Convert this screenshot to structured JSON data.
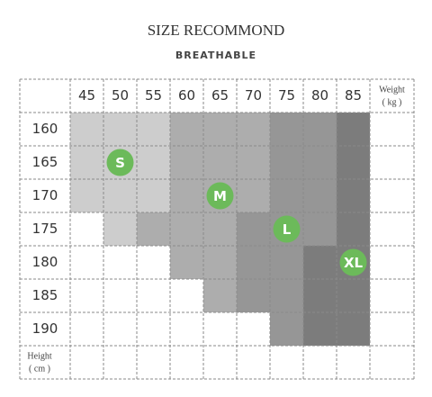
{
  "header": {
    "title": "SIZE RECOMMOND",
    "subtitle": "BREATHABLE"
  },
  "table": {
    "weight_label": [
      "Weight",
      "( kg )"
    ],
    "height_label": [
      "Height",
      "( cm )"
    ],
    "columns": [
      45,
      50,
      55,
      60,
      65,
      70,
      75,
      80,
      85
    ],
    "rows": [
      160,
      165,
      170,
      175,
      180,
      185,
      190
    ],
    "badges": [
      "S",
      "M",
      "L",
      "XL"
    ]
  }
}
